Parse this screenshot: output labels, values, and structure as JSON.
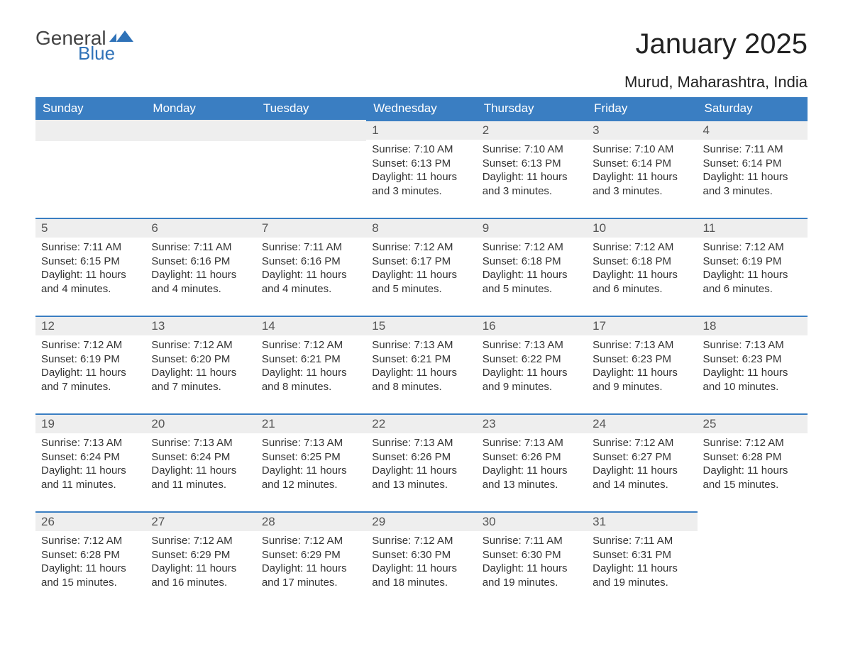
{
  "logo": {
    "word1": "General",
    "word2": "Blue",
    "brand_color": "#2f72b8"
  },
  "title": "January 2025",
  "location": "Murud, Maharashtra, India",
  "header_bg": "#3a7ec2",
  "header_fg": "#ffffff",
  "daynum_bg": "#eeeeee",
  "border_color": "#3a7ec2",
  "columns": [
    "Sunday",
    "Monday",
    "Tuesday",
    "Wednesday",
    "Thursday",
    "Friday",
    "Saturday"
  ],
  "weeks": [
    [
      null,
      null,
      null,
      {
        "n": "1",
        "sunrise": "7:10 AM",
        "sunset": "6:13 PM",
        "daylight": "11 hours and 3 minutes."
      },
      {
        "n": "2",
        "sunrise": "7:10 AM",
        "sunset": "6:13 PM",
        "daylight": "11 hours and 3 minutes."
      },
      {
        "n": "3",
        "sunrise": "7:10 AM",
        "sunset": "6:14 PM",
        "daylight": "11 hours and 3 minutes."
      },
      {
        "n": "4",
        "sunrise": "7:11 AM",
        "sunset": "6:14 PM",
        "daylight": "11 hours and 3 minutes."
      }
    ],
    [
      {
        "n": "5",
        "sunrise": "7:11 AM",
        "sunset": "6:15 PM",
        "daylight": "11 hours and 4 minutes."
      },
      {
        "n": "6",
        "sunrise": "7:11 AM",
        "sunset": "6:16 PM",
        "daylight": "11 hours and 4 minutes."
      },
      {
        "n": "7",
        "sunrise": "7:11 AM",
        "sunset": "6:16 PM",
        "daylight": "11 hours and 4 minutes."
      },
      {
        "n": "8",
        "sunrise": "7:12 AM",
        "sunset": "6:17 PM",
        "daylight": "11 hours and 5 minutes."
      },
      {
        "n": "9",
        "sunrise": "7:12 AM",
        "sunset": "6:18 PM",
        "daylight": "11 hours and 5 minutes."
      },
      {
        "n": "10",
        "sunrise": "7:12 AM",
        "sunset": "6:18 PM",
        "daylight": "11 hours and 6 minutes."
      },
      {
        "n": "11",
        "sunrise": "7:12 AM",
        "sunset": "6:19 PM",
        "daylight": "11 hours and 6 minutes."
      }
    ],
    [
      {
        "n": "12",
        "sunrise": "7:12 AM",
        "sunset": "6:19 PM",
        "daylight": "11 hours and 7 minutes."
      },
      {
        "n": "13",
        "sunrise": "7:12 AM",
        "sunset": "6:20 PM",
        "daylight": "11 hours and 7 minutes."
      },
      {
        "n": "14",
        "sunrise": "7:12 AM",
        "sunset": "6:21 PM",
        "daylight": "11 hours and 8 minutes."
      },
      {
        "n": "15",
        "sunrise": "7:13 AM",
        "sunset": "6:21 PM",
        "daylight": "11 hours and 8 minutes."
      },
      {
        "n": "16",
        "sunrise": "7:13 AM",
        "sunset": "6:22 PM",
        "daylight": "11 hours and 9 minutes."
      },
      {
        "n": "17",
        "sunrise": "7:13 AM",
        "sunset": "6:23 PM",
        "daylight": "11 hours and 9 minutes."
      },
      {
        "n": "18",
        "sunrise": "7:13 AM",
        "sunset": "6:23 PM",
        "daylight": "11 hours and 10 minutes."
      }
    ],
    [
      {
        "n": "19",
        "sunrise": "7:13 AM",
        "sunset": "6:24 PM",
        "daylight": "11 hours and 11 minutes."
      },
      {
        "n": "20",
        "sunrise": "7:13 AM",
        "sunset": "6:24 PM",
        "daylight": "11 hours and 11 minutes."
      },
      {
        "n": "21",
        "sunrise": "7:13 AM",
        "sunset": "6:25 PM",
        "daylight": "11 hours and 12 minutes."
      },
      {
        "n": "22",
        "sunrise": "7:13 AM",
        "sunset": "6:26 PM",
        "daylight": "11 hours and 13 minutes."
      },
      {
        "n": "23",
        "sunrise": "7:13 AM",
        "sunset": "6:26 PM",
        "daylight": "11 hours and 13 minutes."
      },
      {
        "n": "24",
        "sunrise": "7:12 AM",
        "sunset": "6:27 PM",
        "daylight": "11 hours and 14 minutes."
      },
      {
        "n": "25",
        "sunrise": "7:12 AM",
        "sunset": "6:28 PM",
        "daylight": "11 hours and 15 minutes."
      }
    ],
    [
      {
        "n": "26",
        "sunrise": "7:12 AM",
        "sunset": "6:28 PM",
        "daylight": "11 hours and 15 minutes."
      },
      {
        "n": "27",
        "sunrise": "7:12 AM",
        "sunset": "6:29 PM",
        "daylight": "11 hours and 16 minutes."
      },
      {
        "n": "28",
        "sunrise": "7:12 AM",
        "sunset": "6:29 PM",
        "daylight": "11 hours and 17 minutes."
      },
      {
        "n": "29",
        "sunrise": "7:12 AM",
        "sunset": "6:30 PM",
        "daylight": "11 hours and 18 minutes."
      },
      {
        "n": "30",
        "sunrise": "7:11 AM",
        "sunset": "6:30 PM",
        "daylight": "11 hours and 19 minutes."
      },
      {
        "n": "31",
        "sunrise": "7:11 AM",
        "sunset": "6:31 PM",
        "daylight": "11 hours and 19 minutes."
      },
      null
    ]
  ],
  "labels": {
    "sunrise": "Sunrise:",
    "sunset": "Sunset:",
    "daylight": "Daylight:"
  }
}
